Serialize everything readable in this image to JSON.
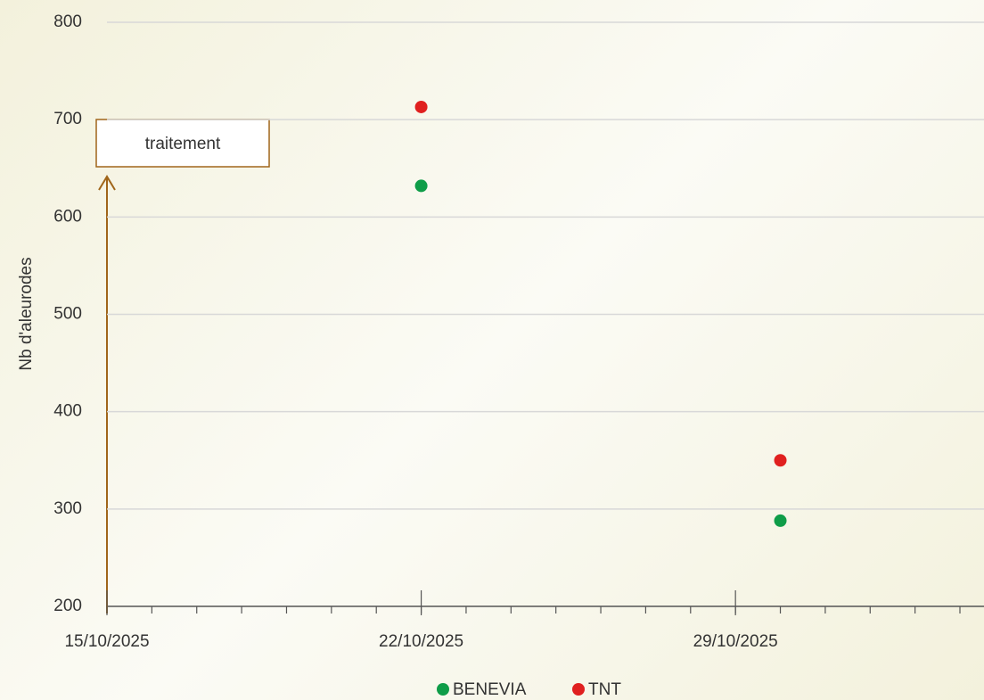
{
  "chart_data": {
    "type": "scatter",
    "y_label": "Nb d'aleurodes",
    "annotation": "traitement",
    "xlim": [
      "15/10/2025",
      "03/11/2025"
    ],
    "xticks": [
      "15/10/2025",
      "22/10/2025",
      "29/10/2025"
    ],
    "ylim": [
      200,
      800
    ],
    "yticks": [
      200,
      300,
      400,
      500,
      600,
      700,
      800
    ],
    "grid": true,
    "legend": "bottom",
    "series": [
      {
        "name": "BENEVIA",
        "color": "#0f9d48",
        "x": [
          "22/10/2025",
          "30/10/2025"
        ],
        "values": [
          632,
          288
        ]
      },
      {
        "name": "TNT",
        "color": "#e0201f",
        "x": [
          "22/10/2025",
          "30/10/2025"
        ],
        "values": [
          713,
          350
        ]
      }
    ]
  }
}
